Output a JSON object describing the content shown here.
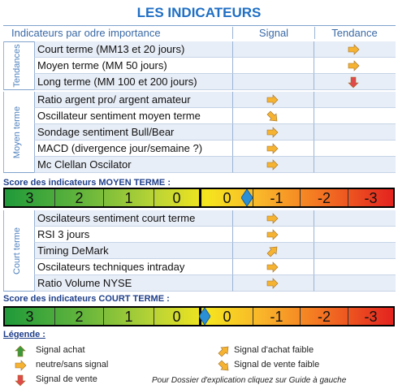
{
  "title": "LES INDICATEURS",
  "header": {
    "indicators": "Indicateurs par odre importance",
    "signal": "Signal",
    "trend": "Tendance"
  },
  "tendances": {
    "label": "Tendances",
    "rows": [
      "Court terme (MM13 et 20 jours)",
      "Moyen terme (MM 50 jours)",
      "Long terme (MM 100 et 200 jours)"
    ]
  },
  "moyen_terme": {
    "label": "Moyen terme",
    "rows": [
      "Ratio argent pro/ argent amateur",
      "Oscillateur sentiment moyen terme",
      "Sondage sentiment Bull/Bear",
      "MACD (divergence jour/semaine ?)",
      "Mc Clellan Oscilator"
    ]
  },
  "score_moyen": {
    "title": "Score des indicateurs MOYEN TERME :",
    "scale": [
      3,
      2,
      1,
      0,
      0,
      -1,
      -2,
      -3
    ]
  },
  "court_terme": {
    "label": "Court terme",
    "rows": [
      "Oscilateurs sentiment court terme",
      "RSI 3 jours",
      "Timing DeMark",
      "Oscilateurs techniques intraday",
      "Ratio Volume NYSE"
    ]
  },
  "score_court": {
    "title": "Score des indicateurs COURT TERME :",
    "scale": [
      3,
      2,
      1,
      0,
      0,
      -1,
      -2,
      -3
    ]
  },
  "legend": {
    "title": "Légende :",
    "items": [
      "Signal achat",
      "neutre/sans signal",
      "Signal de vente",
      "Signal d'achat faible",
      "Signal de vente faible"
    ],
    "note": "Pour Dossier d'explication cliquez sur Guide à gauche"
  }
}
